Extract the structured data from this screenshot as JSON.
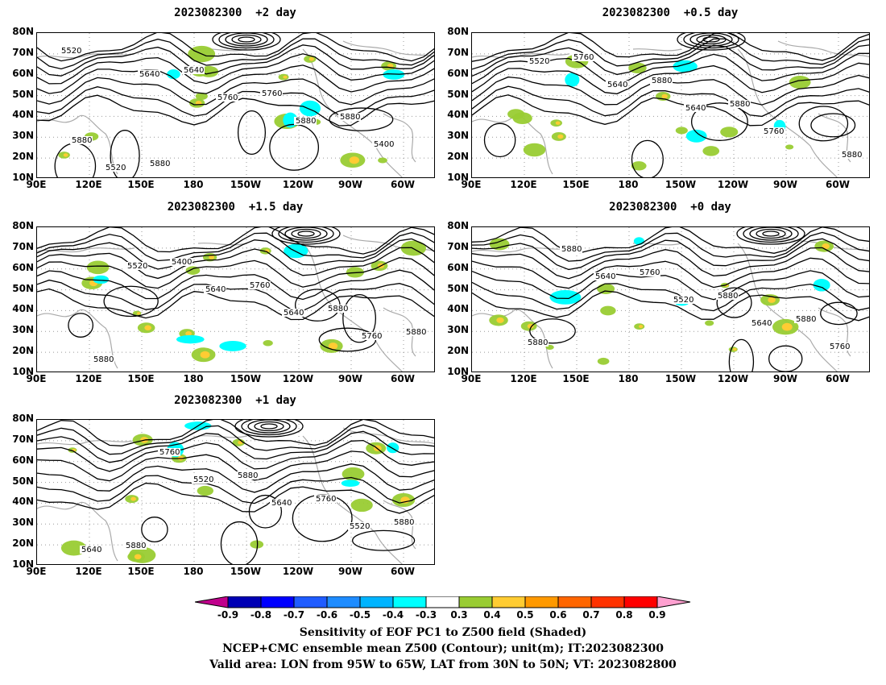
{
  "panels": [
    {
      "id": "p2",
      "title": "2023082300  +2 day",
      "contour_labels": [
        "5520",
        "5640",
        "5760",
        "5880",
        "5400",
        "5520",
        "5640",
        "5760",
        "5880",
        "5880",
        "5880"
      ]
    },
    {
      "id": "p05",
      "title": "2023082300  +0.5 day",
      "contour_labels": [
        "5520",
        "5640",
        "5640",
        "5760",
        "5880",
        "5760",
        "5880",
        "5880"
      ]
    },
    {
      "id": "p15",
      "title": "2023082300  +1.5 day",
      "contour_labels": [
        "5520",
        "5640",
        "5640",
        "5760",
        "5880",
        "5400",
        "5760",
        "5880",
        "5880"
      ]
    },
    {
      "id": "p0",
      "title": "2023082300  +0 day",
      "contour_labels": [
        "5640",
        "5520",
        "5640",
        "5760",
        "5880",
        "5760",
        "5880",
        "5880",
        "5880"
      ]
    },
    {
      "id": "p1",
      "title": "2023082300  +1 day",
      "contour_labels": [
        "5520",
        "5640",
        "5520",
        "5640",
        "5760",
        "5880",
        "5760",
        "5880",
        "5880"
      ]
    }
  ],
  "axes": {
    "y_ticks": [
      "80N",
      "70N",
      "60N",
      "50N",
      "40N",
      "30N",
      "20N",
      "10N"
    ],
    "x_ticks": [
      "90E",
      "120E",
      "150E",
      "180",
      "150W",
      "120W",
      "90W",
      "60W"
    ]
  },
  "colorbar": {
    "labels": [
      "-0.9",
      "-0.8",
      "-0.7",
      "-0.6",
      "-0.5",
      "-0.4",
      "-0.3",
      "0.3",
      "0.4",
      "0.5",
      "0.6",
      "0.7",
      "0.8",
      "0.9"
    ],
    "colors": [
      "#0000b4",
      "#0000ff",
      "#1f5cff",
      "#1e8cff",
      "#00b4ff",
      "#00ffff",
      "#ffffff",
      "#99cc33",
      "#ffcc33",
      "#ff9900",
      "#ff6600",
      "#ff3300",
      "#ff0000"
    ],
    "left_arrow_color": "#c0008c",
    "right_arrow_color": "#ffa0d0"
  },
  "captions": {
    "line1": "Sensitivity of EOF PC1 to Z500 field (Shaded)",
    "line2": "NCEP+CMC ensemble mean Z500 (Contour); unit(m); IT:2023082300",
    "line3": "Valid area: LON from 95W to 65W, LAT from 30N to 50N; VT: 2023082800"
  },
  "colors": {
    "contour": "#000000",
    "coast": "#aaaaaa",
    "grid": "#999999",
    "positive": "#99cc33",
    "positive_high": "#ffcc33",
    "negative": "#00ffff"
  }
}
